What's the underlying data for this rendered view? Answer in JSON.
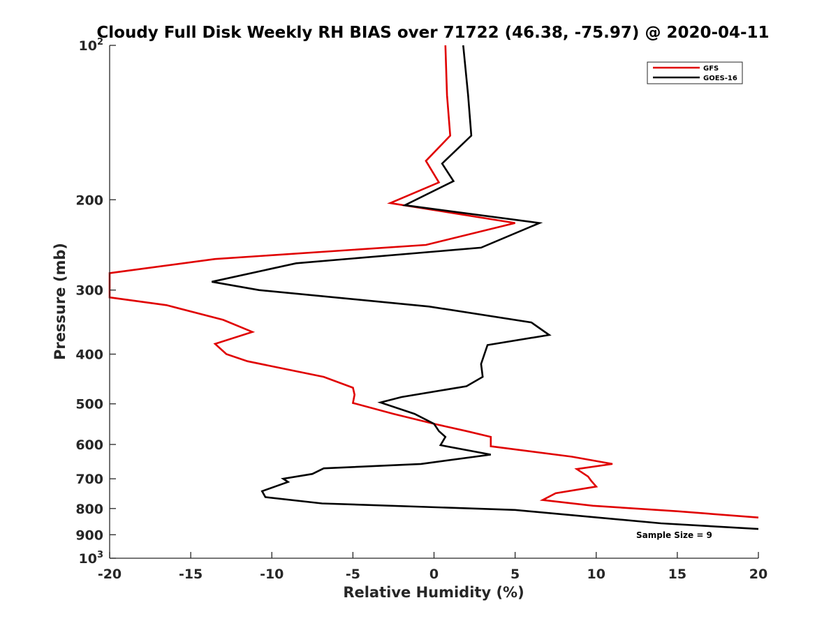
{
  "chart_data": {
    "type": "line",
    "title": "Cloudy Full Disk Weekly RH BIAS over 71722 (46.38, -75.97) @ 2020-04-11",
    "xlabel": "Relative Humidity (%)",
    "ylabel": "Pressure (mb)",
    "xlim": [
      -20,
      20
    ],
    "ylim": [
      100,
      1000
    ],
    "yscale": "log",
    "y_reversed": true,
    "grid": false,
    "legend_position": "top-right",
    "x_ticks": [
      {
        "value": -20,
        "label": "-20"
      },
      {
        "value": -15,
        "label": "-15"
      },
      {
        "value": -10,
        "label": "-10"
      },
      {
        "value": -5,
        "label": "-5"
      },
      {
        "value": 0,
        "label": "0"
      },
      {
        "value": 5,
        "label": "5"
      },
      {
        "value": 10,
        "label": "10"
      },
      {
        "value": 15,
        "label": "15"
      },
      {
        "value": 20,
        "label": "20"
      }
    ],
    "y_ticks": [
      {
        "value": 100,
        "base": "10",
        "exp": "2"
      },
      {
        "value": 200,
        "base": "200",
        "exp": ""
      },
      {
        "value": 300,
        "base": "300",
        "exp": ""
      },
      {
        "value": 400,
        "base": "400",
        "exp": ""
      },
      {
        "value": 500,
        "base": "500",
        "exp": ""
      },
      {
        "value": 600,
        "base": "600",
        "exp": ""
      },
      {
        "value": 700,
        "base": "700",
        "exp": ""
      },
      {
        "value": 800,
        "base": "800",
        "exp": ""
      },
      {
        "value": 900,
        "base": "900",
        "exp": ""
      },
      {
        "value": 1000,
        "base": "10",
        "exp": "3"
      }
    ],
    "series": [
      {
        "name": "GFS",
        "color": "#e00000",
        "points": [
          [
            0.7,
            100
          ],
          [
            0.8,
            125
          ],
          [
            1.0,
            150
          ],
          [
            -0.5,
            168
          ],
          [
            0.3,
            185
          ],
          [
            -2.7,
            203
          ],
          [
            5.0,
            222
          ],
          [
            -0.5,
            245
          ],
          [
            -13.5,
            261
          ],
          [
            -20.0,
            278
          ],
          [
            -20.0,
            310
          ],
          [
            -16.5,
            321
          ],
          [
            -13.0,
            343
          ],
          [
            -11.2,
            362
          ],
          [
            -13.5,
            382
          ],
          [
            -12.8,
            400
          ],
          [
            -11.5,
            413
          ],
          [
            -6.8,
            443
          ],
          [
            -5.0,
            465
          ],
          [
            -4.9,
            480
          ],
          [
            -5.0,
            498
          ],
          [
            -2.5,
            523
          ],
          [
            0.0,
            547
          ],
          [
            2.0,
            565
          ],
          [
            3.5,
            580
          ],
          [
            3.5,
            605
          ],
          [
            8.5,
            634
          ],
          [
            11.0,
            655
          ],
          [
            8.8,
            670
          ],
          [
            9.5,
            693
          ],
          [
            9.7,
            707
          ],
          [
            10.0,
            725
          ],
          [
            7.5,
            747
          ],
          [
            6.7,
            770
          ],
          [
            9.8,
            790
          ],
          [
            15.0,
            810
          ],
          [
            20.0,
            833
          ]
        ]
      },
      {
        "name": "GOES-16",
        "color": "#000000",
        "points": [
          [
            1.8,
            100
          ],
          [
            2.1,
            125
          ],
          [
            2.3,
            150
          ],
          [
            0.5,
            170
          ],
          [
            1.2,
            184
          ],
          [
            -1.8,
            205
          ],
          [
            6.5,
            222
          ],
          [
            2.9,
            248
          ],
          [
            -8.5,
            266
          ],
          [
            -13.7,
            289
          ],
          [
            -10.8,
            300
          ],
          [
            -0.3,
            323
          ],
          [
            6.0,
            347
          ],
          [
            7.1,
            367
          ],
          [
            3.3,
            384
          ],
          [
            2.9,
            418
          ],
          [
            3.0,
            443
          ],
          [
            2.0,
            462
          ],
          [
            -2.0,
            485
          ],
          [
            -3.3,
            497
          ],
          [
            -1.2,
            523
          ],
          [
            0.0,
            547
          ],
          [
            0.3,
            565
          ],
          [
            0.7,
            580
          ],
          [
            0.4,
            602
          ],
          [
            3.5,
            628
          ],
          [
            -0.8,
            655
          ],
          [
            -6.8,
            668
          ],
          [
            -7.5,
            685
          ],
          [
            -9.3,
            700
          ],
          [
            -9.0,
            710
          ],
          [
            -10.6,
            740
          ],
          [
            -10.4,
            760
          ],
          [
            -6.9,
            782
          ],
          [
            5.0,
            805
          ],
          [
            14.0,
            855
          ],
          [
            20.0,
            877
          ]
        ]
      }
    ],
    "legend": [
      {
        "label": "GFS",
        "color": "#e00000"
      },
      {
        "label": "GOES-16",
        "color": "#000000"
      }
    ],
    "annotations": [
      {
        "text": "Sample Size = 9",
        "position": "bottom-right"
      }
    ]
  }
}
